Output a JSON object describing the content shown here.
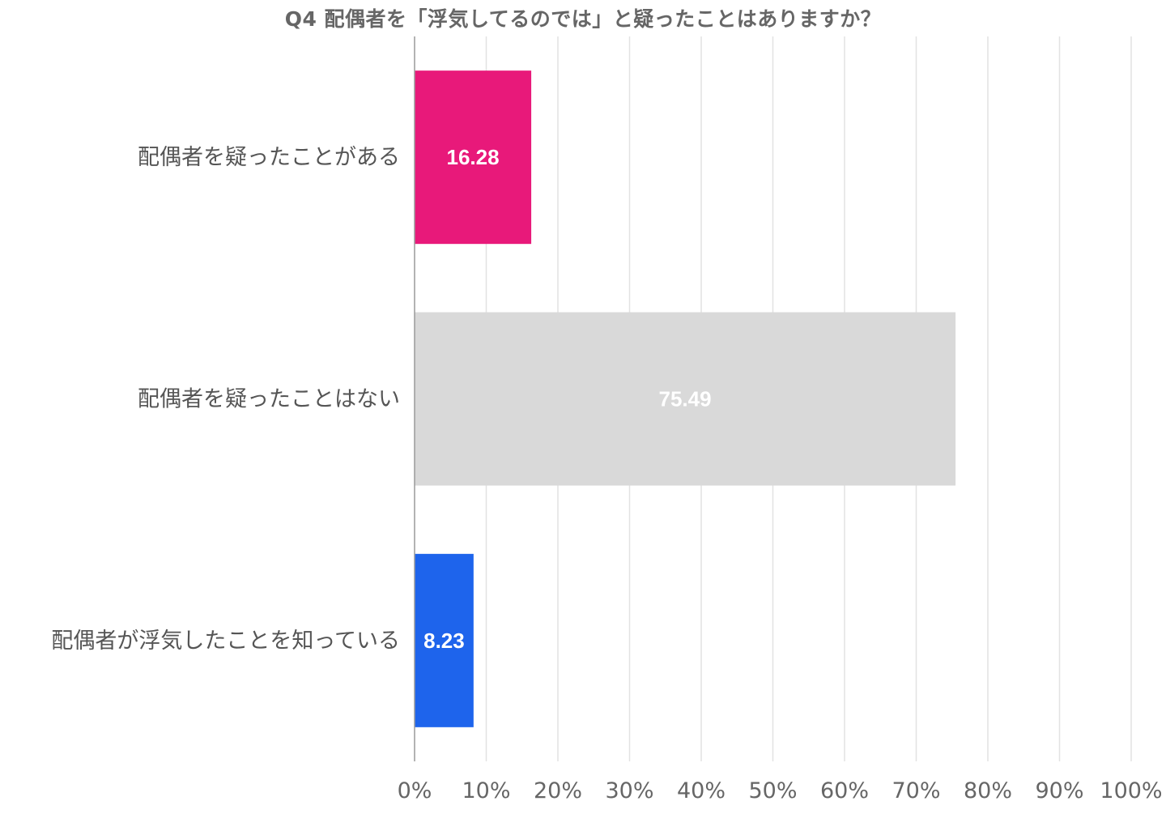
{
  "chart_data": {
    "type": "bar",
    "orientation": "horizontal",
    "title": "Q4 配偶者を「浮気してるのでは」と疑ったことはありますか？",
    "categories": [
      "配偶者を疑ったことがある",
      "配偶者を疑ったことはない",
      "配偶者が浮気したことを知っている"
    ],
    "values": [
      16.28,
      75.49,
      8.23
    ],
    "value_labels": [
      "16.28",
      "75.49",
      "8.23"
    ],
    "colors": [
      "#e8197a",
      "#d9d9d9",
      "#1e64ec"
    ],
    "xlim": [
      0,
      100
    ],
    "x_ticks": [
      0,
      10,
      20,
      30,
      40,
      50,
      60,
      70,
      80,
      90,
      100
    ],
    "x_tick_labels": [
      "0%",
      "10%",
      "20%",
      "30%",
      "40%",
      "50%",
      "60%",
      "70%",
      "80%",
      "90%",
      "100%"
    ],
    "grid": true,
    "legend": "none"
  }
}
